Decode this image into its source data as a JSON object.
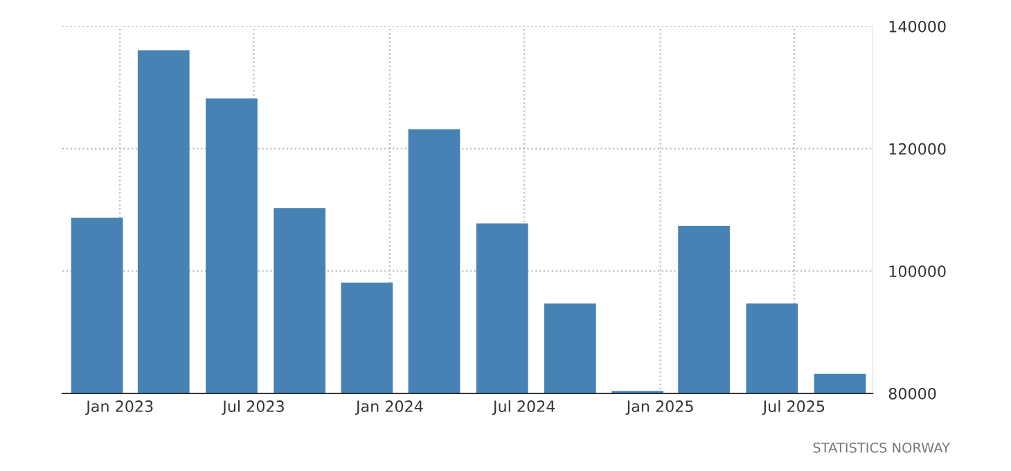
{
  "chart_data": {
    "type": "bar",
    "color": "#4682b4",
    "x": [
      "2022-12-01",
      "2023-03-01",
      "2023-06-01",
      "2023-09-01",
      "2023-12-01",
      "2024-03-01",
      "2024-06-01",
      "2024-09-01",
      "2024-12-01",
      "2025-03-01",
      "2025-06-01",
      "2025-09-01"
    ],
    "values": [
      108700,
      136100,
      128200,
      110300,
      98100,
      123200,
      107800,
      94700,
      80400,
      107400,
      94700,
      83200
    ],
    "xlim": [
      "2022-10-15",
      "2025-10-15"
    ],
    "xticks": [
      {
        "value": "2023-01-01",
        "label": "Jan 2023"
      },
      {
        "value": "2023-07-01",
        "label": "Jul 2023"
      },
      {
        "value": "2024-01-01",
        "label": "Jan 2024"
      },
      {
        "value": "2024-07-01",
        "label": "Jul 2024"
      },
      {
        "value": "2025-01-01",
        "label": "Jan 2025"
      },
      {
        "value": "2025-07-01",
        "label": "Jul 2025"
      }
    ],
    "ylim": [
      80000,
      140000
    ],
    "yticks": [
      80000,
      100000,
      120000,
      140000
    ],
    "grid": true,
    "annotations": [
      "STATISTICS NORWAY"
    ]
  }
}
